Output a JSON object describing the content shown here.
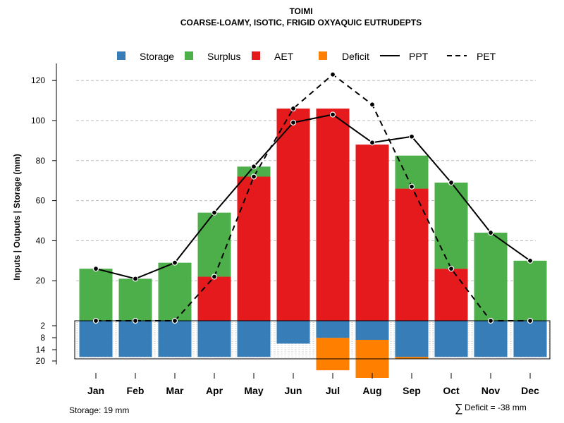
{
  "chart_data": {
    "type": "bar",
    "title": "TOIMI",
    "subtitle": "COARSE-LOAMY, ISOTIC, FRIGID OXYAQUIC EUTRUDEPTS",
    "ylabel": "Inputs | Outputs | Storage    (mm)",
    "categories": [
      "Jan",
      "Feb",
      "Mar",
      "Apr",
      "May",
      "Jun",
      "Jul",
      "Aug",
      "Sep",
      "Oct",
      "Nov",
      "Dec"
    ],
    "upper_yticks": [
      20,
      40,
      60,
      80,
      100,
      120
    ],
    "lower_yticks": [
      2,
      8,
      14,
      20
    ],
    "ylim_upper": [
      0,
      130
    ],
    "ylim_lower": [
      0,
      20
    ],
    "legend": [
      {
        "key": "storage",
        "label": "Storage",
        "kind": "box",
        "color": "#377EB8"
      },
      {
        "key": "surplus",
        "label": "Surplus",
        "kind": "box",
        "color": "#4DAF4A"
      },
      {
        "key": "aet",
        "label": "AET",
        "kind": "box",
        "color": "#E41A1C"
      },
      {
        "key": "deficit",
        "label": "Deficit",
        "kind": "box",
        "color": "#FF7F00"
      },
      {
        "key": "ppt",
        "label": "PPT",
        "kind": "solid",
        "color": "#000000"
      },
      {
        "key": "pet",
        "label": "PET",
        "kind": "dashed",
        "color": "#000000"
      }
    ],
    "series": [
      {
        "name": "AET",
        "values": [
          0,
          0,
          0,
          22,
          72,
          106,
          106,
          88,
          66,
          26,
          0,
          0
        ]
      },
      {
        "name": "Surplus",
        "values": [
          26,
          21,
          29,
          32,
          5,
          0,
          0,
          0,
          16.5,
          43,
          44,
          30
        ]
      },
      {
        "name": "PPT",
        "values": [
          26,
          21,
          29,
          54,
          77,
          99,
          103,
          89,
          92,
          69,
          44,
          30
        ]
      },
      {
        "name": "PET",
        "values": [
          0,
          0,
          0,
          22,
          72,
          106,
          123,
          108,
          67,
          26,
          0,
          0
        ]
      },
      {
        "name": "Storage",
        "values": [
          19,
          19,
          19,
          19,
          19,
          12,
          9,
          10,
          19,
          19,
          19,
          19
        ]
      },
      {
        "name": "Deficit",
        "values": [
          0,
          0,
          0,
          0,
          0,
          0,
          17,
          20,
          1,
          0,
          0,
          0
        ]
      }
    ],
    "storage_note": "Storage: 19 mm",
    "deficit_symbol": "∑",
    "deficit_note": "Deficit = -38 mm",
    "colors": {
      "grid": "#BBBBBB",
      "frame": "#000000"
    }
  }
}
